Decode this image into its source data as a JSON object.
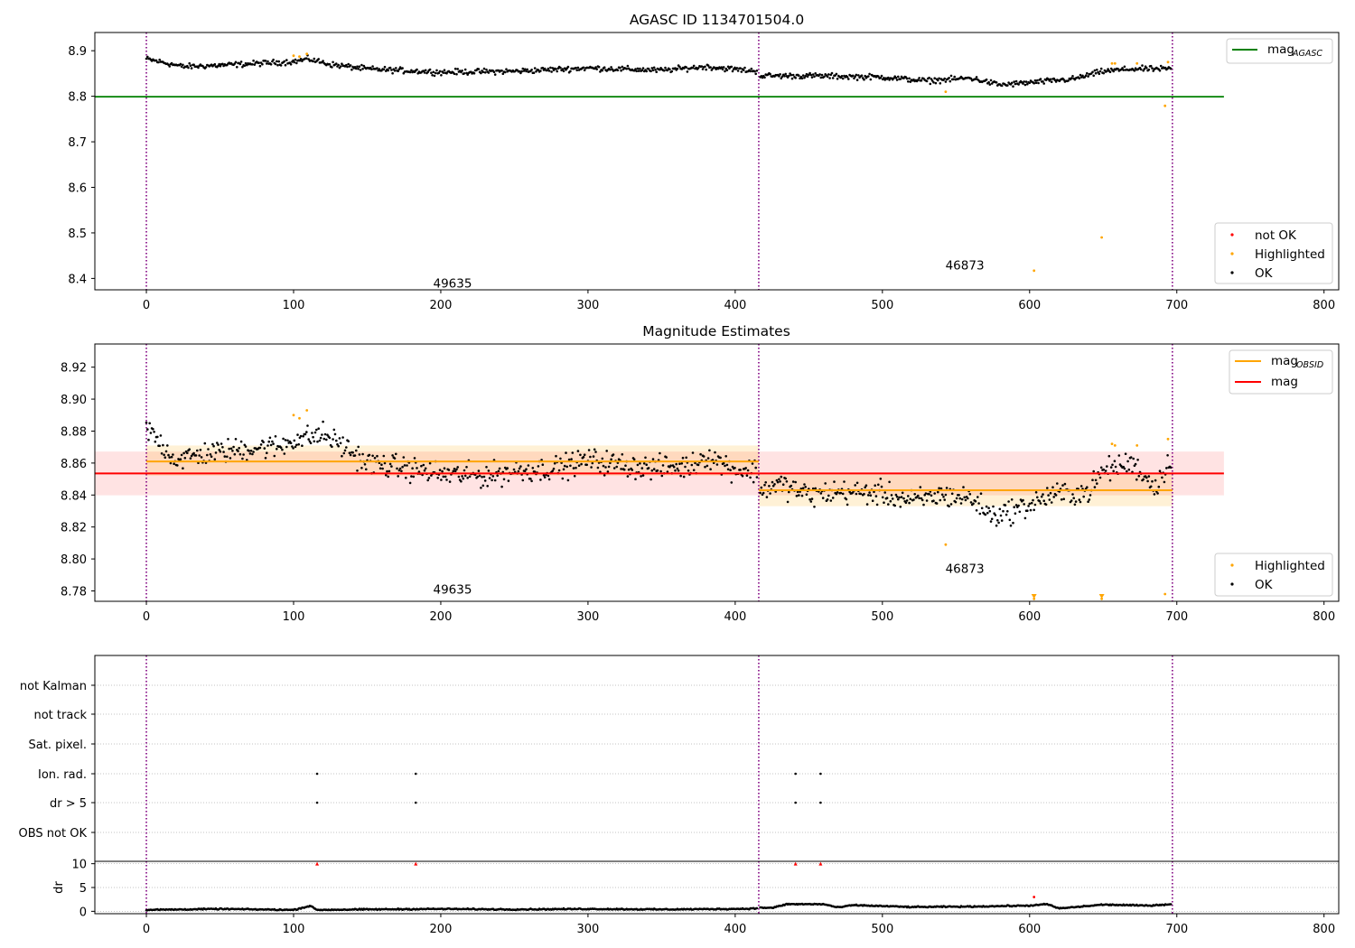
{
  "chart_data": [
    {
      "type": "scatter",
      "title": "AGASC ID 1134701504.0",
      "xlim": [
        -35,
        810
      ],
      "ylim": [
        8.375,
        8.94
      ],
      "x_ticks": [
        "0",
        "100",
        "200",
        "300",
        "400",
        "500",
        "600",
        "700",
        "800"
      ],
      "y_ticks": [
        "8.4",
        "8.5",
        "8.6",
        "8.7",
        "8.8",
        "8.9"
      ],
      "grid": false,
      "legends": [
        {
          "placement": "top-right",
          "entries": [
            {
              "label": "mag",
              "subscript": "AGASC",
              "color": "#008000",
              "marker": "line"
            }
          ]
        },
        {
          "placement": "bottom-right",
          "entries": [
            {
              "label": "not OK",
              "color": "#ff0000",
              "marker": "dot"
            },
            {
              "label": "Highlighted",
              "color": "#ffa500",
              "marker": "dot"
            },
            {
              "label": "OK",
              "color": "#000000",
              "marker": "dot"
            }
          ]
        }
      ],
      "reference_lines": [
        {
          "name": "mag_AGASC",
          "y": 8.799,
          "x_range": [
            -35,
            732
          ],
          "color": "#008000"
        }
      ],
      "obsid_boundaries": [
        0,
        416,
        697
      ],
      "obsid_labels": [
        {
          "text": "49635",
          "x": 208,
          "y": 8.39
        },
        {
          "text": "46873",
          "x": 556,
          "y": 8.43
        }
      ],
      "series": [
        {
          "name": "OK",
          "color": "#000000",
          "segments": [
            {
              "x_start": 0,
              "x_end": 415,
              "points": [
                [
                  0,
                  8.882
                ],
                [
                  25,
                  8.865
                ],
                [
                  50,
                  8.868
                ],
                [
                  75,
                  8.872
                ],
                [
                  100,
                  8.876
                ],
                [
                  110,
                  8.882
                ],
                [
                  125,
                  8.87
                ],
                [
                  150,
                  8.86
                ],
                [
                  200,
                  8.853
                ],
                [
                  250,
                  8.855
                ],
                [
                  300,
                  8.862
                ],
                [
                  350,
                  8.857
                ],
                [
                  380,
                  8.865
                ],
                [
                  415,
                  8.855
                ]
              ]
            },
            {
              "x_start": 417,
              "x_end": 696,
              "points": [
                [
                  417,
                  8.845
                ],
                [
                  450,
                  8.845
                ],
                [
                  500,
                  8.842
                ],
                [
                  530,
                  8.834
                ],
                [
                  560,
                  8.84
                ],
                [
                  580,
                  8.825
                ],
                [
                  600,
                  8.83
                ],
                [
                  630,
                  8.838
                ],
                [
                  650,
                  8.855
                ],
                [
                  670,
                  8.86
                ],
                [
                  696,
                  8.86
                ]
              ]
            }
          ]
        },
        {
          "name": "Highlighted",
          "color": "#ffa500",
          "points": [
            [
              100,
              8.889
            ],
            [
              104,
              8.887
            ],
            [
              109,
              8.893
            ],
            [
              543,
              8.81
            ],
            [
              603,
              8.417
            ],
            [
              649,
              8.49
            ],
            [
              656,
              8.872
            ],
            [
              658,
              8.872
            ],
            [
              673,
              8.872
            ],
            [
              692,
              8.779
            ],
            [
              694,
              8.875
            ]
          ]
        }
      ]
    },
    {
      "type": "scatter",
      "title": "Magnitude Estimates",
      "xlim": [
        -35,
        810
      ],
      "ylim": [
        8.7735,
        8.9345
      ],
      "x_ticks": [
        "0",
        "100",
        "200",
        "300",
        "400",
        "500",
        "600",
        "700",
        "800"
      ],
      "y_ticks": [
        "8.78",
        "8.80",
        "8.82",
        "8.84",
        "8.86",
        "8.88",
        "8.90",
        "8.92"
      ],
      "grid": false,
      "legends": [
        {
          "placement": "top-right",
          "entries": [
            {
              "label": "mag",
              "subscript": "OBSID",
              "color": "#ffa500",
              "marker": "line"
            },
            {
              "label": "mag",
              "color": "#ff0000",
              "marker": "line"
            }
          ]
        },
        {
          "placement": "bottom-right",
          "entries": [
            {
              "label": "Highlighted",
              "color": "#ffa500",
              "marker": "dot"
            },
            {
              "label": "OK",
              "color": "#000000",
              "marker": "dot"
            }
          ]
        }
      ],
      "reference_lines": [
        {
          "name": "mag",
          "y": 8.8535,
          "x_range": [
            -35,
            732
          ],
          "band": [
            8.8398,
            8.8672
          ],
          "color": "#ff0000"
        },
        {
          "name": "mag_OBSID",
          "y": 8.861,
          "x_range": [
            0,
            416
          ],
          "band": [
            8.852,
            8.871
          ],
          "color": "#ffa500"
        },
        {
          "name": "mag_OBSID",
          "y": 8.843,
          "x_range": [
            416,
            697
          ],
          "band": [
            8.833,
            8.853
          ],
          "color": "#ffa500"
        }
      ],
      "obsid_boundaries": [
        0,
        416,
        697
      ],
      "obsid_labels": [
        {
          "text": "49635",
          "x": 208,
          "y": 8.781
        },
        {
          "text": "46873",
          "x": 556,
          "y": 8.794
        }
      ],
      "series": [
        {
          "name": "OK",
          "color": "#000000",
          "segments": [
            {
              "x_start": 0,
              "x_end": 415,
              "points": [
                [
                  0,
                  8.882
                ],
                [
                  20,
                  8.862
                ],
                [
                  40,
                  8.866
                ],
                [
                  60,
                  8.868
                ],
                [
                  75,
                  8.87
                ],
                [
                  90,
                  8.87
                ],
                [
                  100,
                  8.875
                ],
                [
                  110,
                  8.876
                ],
                [
                  120,
                  8.878
                ],
                [
                  135,
                  8.87
                ],
                [
                  150,
                  8.86
                ],
                [
                  175,
                  8.857
                ],
                [
                  200,
                  8.853
                ],
                [
                  230,
                  8.852
                ],
                [
                  250,
                  8.855
                ],
                [
                  280,
                  8.857
                ],
                [
                  300,
                  8.862
                ],
                [
                  330,
                  8.858
                ],
                [
                  350,
                  8.857
                ],
                [
                  370,
                  8.858
                ],
                [
                  380,
                  8.865
                ],
                [
                  400,
                  8.856
                ],
                [
                  415,
                  8.855
                ]
              ]
            },
            {
              "x_start": 417,
              "x_end": 696,
              "points": [
                [
                  417,
                  8.843
                ],
                [
                  430,
                  8.847
                ],
                [
                  450,
                  8.84
                ],
                [
                  470,
                  8.842
                ],
                [
                  500,
                  8.841
                ],
                [
                  520,
                  8.836
                ],
                [
                  540,
                  8.84
                ],
                [
                  560,
                  8.838
                ],
                [
                  575,
                  8.827
                ],
                [
                  595,
                  8.832
                ],
                [
                  615,
                  8.84
                ],
                [
                  640,
                  8.842
                ],
                [
                  650,
                  8.855
                ],
                [
                  660,
                  8.858
                ],
                [
                  670,
                  8.86
                ],
                [
                  685,
                  8.845
                ],
                [
                  696,
                  8.862
                ]
              ]
            }
          ]
        },
        {
          "name": "Highlighted",
          "color": "#ffa500",
          "points": [
            [
              100,
              8.89
            ],
            [
              104,
              8.888
            ],
            [
              109,
              8.893
            ],
            [
              543,
              8.809
            ],
            [
              603,
              8.775
            ],
            [
              649,
              8.775
            ],
            [
              656,
              8.872
            ],
            [
              658,
              8.871
            ],
            [
              673,
              8.871
            ],
            [
              692,
              8.778
            ],
            [
              694,
              8.875
            ]
          ]
        }
      ]
    },
    {
      "type": "scatter",
      "title": "",
      "xlim": [
        -35,
        810
      ],
      "x_ticks": [
        "0",
        "100",
        "200",
        "300",
        "400",
        "500",
        "600",
        "700",
        "800"
      ],
      "categories": [
        "not Kalman",
        "not track",
        "Sat. pixel.",
        "Ion. rad.",
        "dr > 5",
        "OBS not OK"
      ],
      "grid": "horizontal dotted",
      "obsid_boundaries": [
        0,
        416,
        697
      ],
      "flags": [
        {
          "category": "Ion. rad.",
          "x": [
            116,
            183,
            441,
            458
          ]
        },
        {
          "category": "dr > 5",
          "x": [
            116,
            183,
            441,
            458
          ]
        }
      ]
    },
    {
      "type": "scatter",
      "title": "",
      "ylabel": "dr",
      "xlim": [
        -35,
        810
      ],
      "ylim": [
        -0.5,
        10.5
      ],
      "x_ticks": [
        "0",
        "100",
        "200",
        "300",
        "400",
        "500",
        "600",
        "700",
        "800"
      ],
      "y_ticks": [
        "0",
        "5",
        "10"
      ],
      "grid": "horizontal dotted",
      "obsid_boundaries": [
        0,
        416,
        697
      ],
      "series": [
        {
          "name": "OK",
          "color": "#000000",
          "segments": [
            {
              "x_start": 0,
              "x_end": 415,
              "points": [
                [
                  0,
                  0.3
                ],
                [
                  50,
                  0.5
                ],
                [
                  100,
                  0.3
                ],
                [
                  112,
                  1.2
                ],
                [
                  115,
                  0.3
                ],
                [
                  150,
                  0.4
                ],
                [
                  200,
                  0.5
                ],
                [
                  250,
                  0.4
                ],
                [
                  300,
                  0.5
                ],
                [
                  350,
                  0.4
                ],
                [
                  400,
                  0.5
                ],
                [
                  415,
                  0.6
                ]
              ]
            },
            {
              "x_start": 417,
              "x_end": 696,
              "points": [
                [
                  417,
                  0.8
                ],
                [
                  425,
                  0.7
                ],
                [
                  435,
                  1.5
                ],
                [
                  460,
                  1.5
                ],
                [
                  470,
                  0.8
                ],
                [
                  480,
                  1.3
                ],
                [
                  520,
                  0.9
                ],
                [
                  560,
                  1.0
                ],
                [
                  600,
                  1.2
                ],
                [
                  612,
                  1.5
                ],
                [
                  620,
                  0.6
                ],
                [
                  650,
                  1.4
                ],
                [
                  680,
                  1.2
                ],
                [
                  696,
                  1.5
                ]
              ]
            }
          ]
        },
        {
          "name": "not OK",
          "color": "#ff0000",
          "points": [
            [
              116,
              10
            ],
            [
              183,
              10
            ],
            [
              441,
              10
            ],
            [
              458,
              10
            ],
            [
              603,
              3.0
            ]
          ]
        }
      ]
    }
  ]
}
